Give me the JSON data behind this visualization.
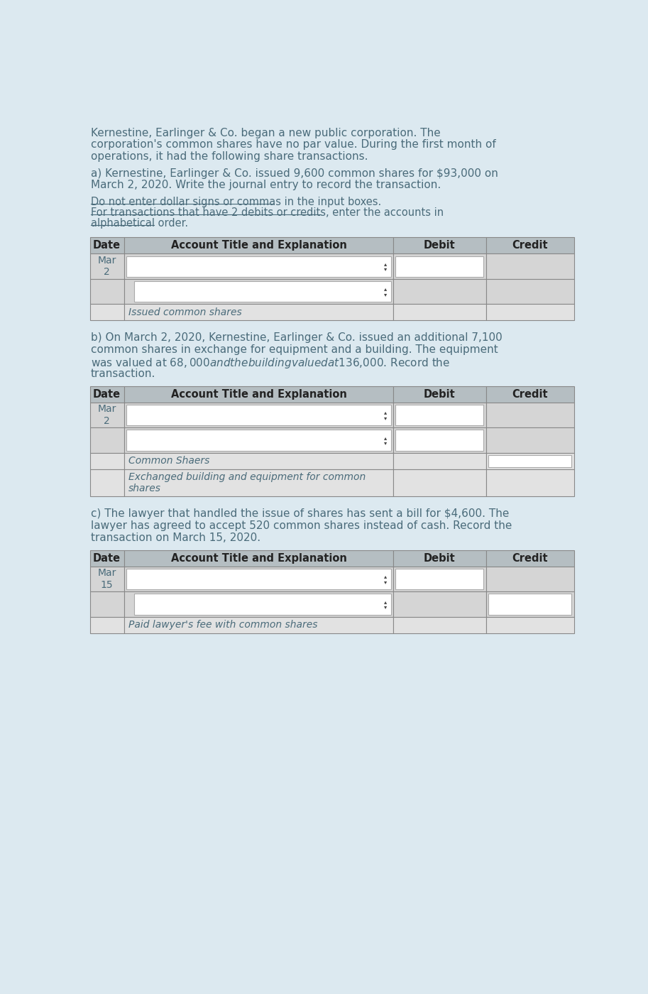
{
  "bg_color": "#dce9f0",
  "text_color": "#4a6b7a",
  "intro_text": "Kernestine, Earlinger & Co. began a new public corporation. The\ncorporation's common shares have no par value. During the first month of\noperations, it had the following share transactions.",
  "section_a_text": "a) Kernestine, Earlinger & Co. issued 9,600 common shares for $93,000 on\nMarch 2, 2020. Write the journal entry to record the transaction.",
  "section_a_instruction1": "Do not enter dollar signs or commas in the input boxes.",
  "section_a_instruction2": "For transactions that have 2 debits or credits, enter the accounts in\nalphabetical order.",
  "section_b_text": "b) On March 2, 2020, Kernestine, Earlinger & Co. issued an additional 7,100\ncommon shares in exchange for equipment and a building. The equipment\nwas valued at $68,000 and the building valued at $136,000. Record the\ntransaction.",
  "section_c_text": "c) The lawyer that handled the issue of shares has sent a bill for $4,600. The\nlawyer has agreed to accept 520 common shares instead of cash. Record the\ntransaction on March 15, 2020.",
  "col_labels": [
    "Date",
    "Account Title and Explanation",
    "Debit",
    "Credit"
  ],
  "table_a_rows": [
    {
      "date": "Mar\n2",
      "account": "",
      "input": true,
      "indent": false,
      "italic": false,
      "debit_input": true,
      "credit_input": false
    },
    {
      "date": "",
      "account": "",
      "input": true,
      "indent": true,
      "italic": false,
      "debit_input": false,
      "credit_input": false
    },
    {
      "date": "",
      "account": "Issued common shares",
      "input": false,
      "indent": false,
      "italic": true,
      "debit_input": false,
      "credit_input": false
    }
  ],
  "table_b_rows": [
    {
      "date": "Mar\n2",
      "account": "",
      "input": true,
      "indent": false,
      "italic": false,
      "debit_input": true,
      "credit_input": false
    },
    {
      "date": "",
      "account": "",
      "input": true,
      "indent": false,
      "italic": false,
      "debit_input": true,
      "credit_input": false
    },
    {
      "date": "",
      "account": "Common Shaers",
      "input": false,
      "indent": false,
      "italic": true,
      "debit_input": false,
      "credit_input": true
    },
    {
      "date": "",
      "account": "Exchanged building and equipment for common\nshares",
      "input": false,
      "indent": false,
      "italic": true,
      "debit_input": false,
      "credit_input": false
    }
  ],
  "table_c_rows": [
    {
      "date": "Mar\n15",
      "account": "",
      "input": true,
      "indent": false,
      "italic": false,
      "debit_input": true,
      "credit_input": false
    },
    {
      "date": "",
      "account": "",
      "input": true,
      "indent": true,
      "italic": false,
      "debit_input": false,
      "credit_input": true
    },
    {
      "date": "",
      "account": "Paid lawyer's fee with common shares",
      "input": false,
      "indent": false,
      "italic": true,
      "debit_input": false,
      "credit_input": false
    }
  ]
}
